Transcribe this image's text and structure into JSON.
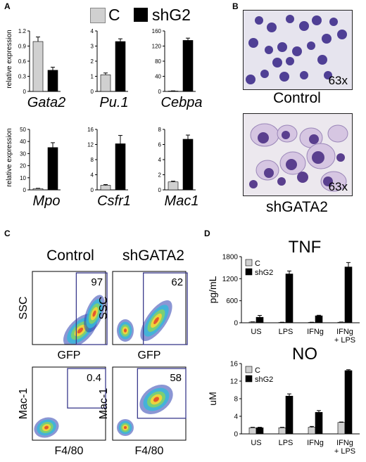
{
  "panels": {
    "A": "A",
    "B": "B",
    "C": "C",
    "D": "D"
  },
  "legend_top": {
    "c": "C",
    "shg2": "shG2"
  },
  "colors": {
    "control": "#d0d0d0",
    "shg2": "#000000",
    "gate": "#3a3a8c",
    "micro_bg": "#e4e2ec",
    "cell": "#5a4a9c"
  },
  "panel_a": {
    "ylabel": "relative expression",
    "charts": [
      {
        "gene": "Gata2",
        "ylim": [
          0,
          1.2
        ],
        "ticks": [
          "0",
          "0.3",
          "0.6",
          "0.9",
          "1.2"
        ],
        "tickvals": [
          0,
          0.3,
          0.6,
          0.9,
          1.2
        ],
        "values": [
          0.99,
          0.42
        ],
        "err": [
          0.09,
          0.06
        ]
      },
      {
        "gene": "Pu.1",
        "ylim": [
          0,
          4
        ],
        "ticks": [
          "0",
          "1",
          "2",
          "3",
          "4"
        ],
        "tickvals": [
          0,
          1,
          2,
          3,
          4
        ],
        "values": [
          1.1,
          3.3
        ],
        "err": [
          0.12,
          0.18
        ]
      },
      {
        "gene": "Cebpa",
        "ylim": [
          0,
          160
        ],
        "ticks": [
          "0",
          "40",
          "80",
          "120",
          "160"
        ],
        "tickvals": [
          0,
          40,
          80,
          120,
          160
        ],
        "values": [
          1,
          135
        ],
        "err": [
          0.5,
          6
        ]
      },
      {
        "gene": "Mpo",
        "ylim": [
          0,
          50
        ],
        "ticks": [
          "0",
          "10",
          "20",
          "30",
          "40",
          "50"
        ],
        "tickvals": [
          0,
          10,
          20,
          30,
          40,
          50
        ],
        "values": [
          1,
          35
        ],
        "err": [
          0.3,
          4
        ]
      },
      {
        "gene": "Csfr1",
        "ylim": [
          0,
          16
        ],
        "ticks": [
          "0",
          "4",
          "8",
          "12",
          "16"
        ],
        "tickvals": [
          0,
          4,
          8,
          12,
          16
        ],
        "values": [
          1.2,
          12.2
        ],
        "err": [
          0.2,
          2.2
        ]
      },
      {
        "gene": "Mac1",
        "ylim": [
          0,
          8
        ],
        "ticks": [
          "0",
          "2",
          "4",
          "6",
          "8"
        ],
        "tickvals": [
          0,
          2,
          4,
          6,
          8
        ],
        "values": [
          1.05,
          6.7
        ],
        "err": [
          0.1,
          0.55
        ]
      }
    ]
  },
  "panel_b": {
    "mag_top": "63x",
    "mag_bottom": "63x",
    "cap_top": "Control",
    "cap_bottom": "shGATA2"
  },
  "panel_c": {
    "col1": "Control",
    "col2": "shGATA2",
    "plots": [
      {
        "ylabel": "SSC",
        "xlabel": "GFP",
        "pct": "97"
      },
      {
        "ylabel": "SSC",
        "xlabel": "GFP",
        "pct": "62"
      },
      {
        "ylabel": "Mac-1",
        "xlabel": "F4/80",
        "pct": "0.4"
      },
      {
        "ylabel": "Mac-1",
        "xlabel": "F4/80",
        "pct": "58"
      }
    ]
  },
  "chart_data": [
    {
      "type": "bar",
      "title": "TNF",
      "ylabel": "pg/mL",
      "categories": [
        "US",
        "LPS",
        "IFNg",
        "IFNg\n+ LPS"
      ],
      "ylim": [
        0,
        1800
      ],
      "yticks": [
        0,
        600,
        1200,
        1800
      ],
      "series": [
        {
          "name": "C",
          "values": [
            20,
            10,
            10,
            15
          ]
        },
        {
          "name": "shG2",
          "values": [
            150,
            1330,
            190,
            1520
          ]
        }
      ],
      "errors": [
        [
          5,
          5,
          5,
          5
        ],
        [
          50,
          80,
          15,
          120
        ]
      ],
      "legend": "top-left"
    },
    {
      "type": "bar",
      "title": "NO",
      "ylabel": "uM",
      "categories": [
        "US",
        "LPS",
        "IFNg",
        "IFNg\n+ LPS"
      ],
      "ylim": [
        0,
        16
      ],
      "yticks": [
        0,
        4,
        8,
        12,
        16
      ],
      "series": [
        {
          "name": "C",
          "values": [
            1.4,
            1.4,
            1.5,
            2.6
          ]
        },
        {
          "name": "shG2",
          "values": [
            1.4,
            8.6,
            4.9,
            14.4
          ]
        }
      ],
      "errors": [
        [
          0.1,
          0.1,
          0.2,
          0.1
        ],
        [
          0.1,
          0.5,
          0.4,
          0.2
        ]
      ],
      "legend": "top-left"
    }
  ]
}
